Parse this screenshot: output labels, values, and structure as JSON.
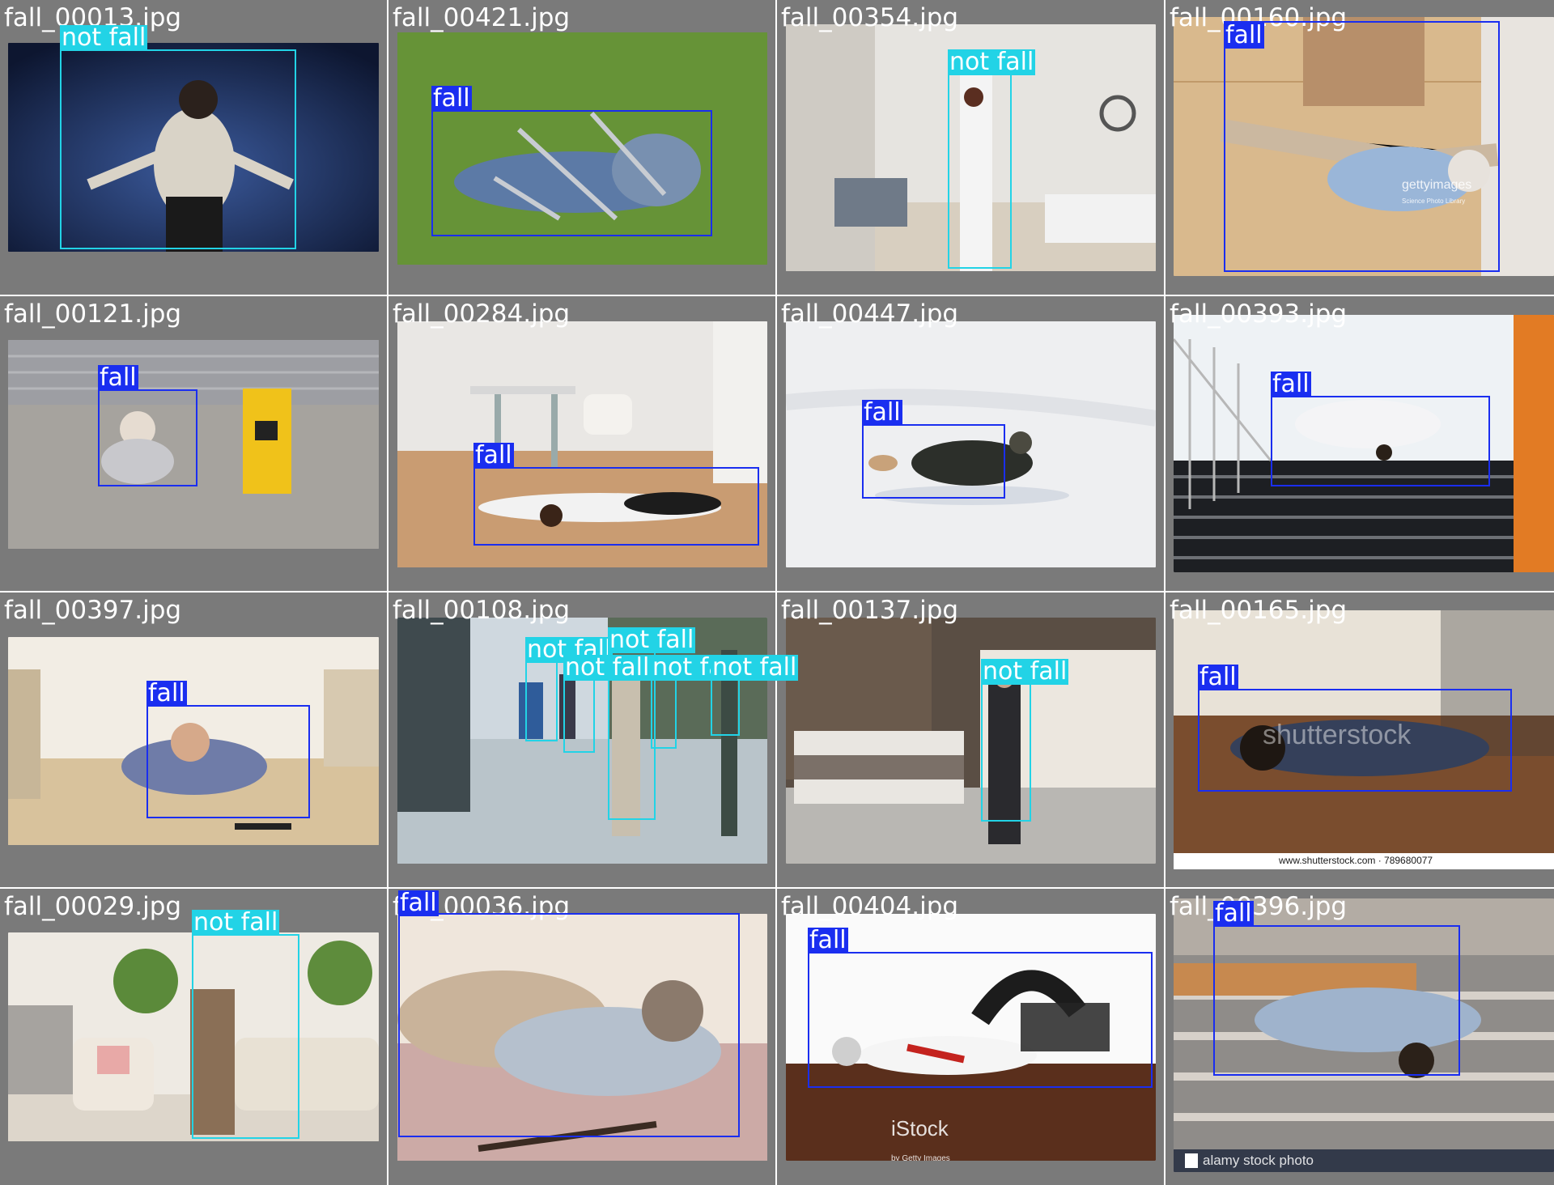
{
  "grid": {
    "cells": [
      {
        "filename": "fall_00013.jpg",
        "detections": [
          {
            "label": "not fall"
          }
        ]
      },
      {
        "filename": "fall_00421.jpg",
        "detections": [
          {
            "label": "fall"
          }
        ]
      },
      {
        "filename": "fall_00354.jpg",
        "detections": [
          {
            "label": "not fall"
          }
        ]
      },
      {
        "filename": "fall_00160.jpg",
        "detections": [
          {
            "label": "fall"
          }
        ],
        "watermark": {
          "text": "gettyimages",
          "sub": "Science Photo Library"
        }
      },
      {
        "filename": "fall_00121.jpg",
        "detections": [
          {
            "label": "fall"
          }
        ]
      },
      {
        "filename": "fall_00284.jpg",
        "detections": [
          {
            "label": "fall"
          }
        ]
      },
      {
        "filename": "fall_00447.jpg",
        "detections": [
          {
            "label": "fall"
          }
        ]
      },
      {
        "filename": "fall_00393.jpg",
        "detections": [
          {
            "label": "fall"
          }
        ]
      },
      {
        "filename": "fall_00397.jpg",
        "detections": [
          {
            "label": "fall"
          }
        ]
      },
      {
        "filename": "fall_00108.jpg",
        "detections": [
          {
            "label": "not fall"
          },
          {
            "label": "not fall"
          },
          {
            "label": "not fall"
          },
          {
            "label": "not fall"
          },
          {
            "label": "not fall"
          }
        ]
      },
      {
        "filename": "fall_00137.jpg",
        "detections": [
          {
            "label": "not fall"
          }
        ]
      },
      {
        "filename": "fall_00165.jpg",
        "detections": [
          {
            "label": "fall"
          }
        ],
        "watermark": {
          "text": "shutterstock",
          "sub": "www.shutterstock.com · 789680077"
        }
      },
      {
        "filename": "fall_00029.jpg",
        "detections": [
          {
            "label": "not fall"
          }
        ]
      },
      {
        "filename": "fall_00036.jpg",
        "detections": [
          {
            "label": "fall"
          }
        ]
      },
      {
        "filename": "fall_00404.jpg",
        "detections": [
          {
            "label": "fall"
          }
        ],
        "watermark": {
          "text": "iStock",
          "sub": "by Getty Images"
        }
      },
      {
        "filename": "fall_00396.jpg",
        "detections": [
          {
            "label": "fall"
          }
        ],
        "watermark": {
          "text": "alamy stock photo",
          "sub": ""
        }
      }
    ]
  },
  "colors": {
    "fall": "#1a2ef0",
    "not_fall": "#22d3e6",
    "background_tile": "#7a7a7a"
  }
}
